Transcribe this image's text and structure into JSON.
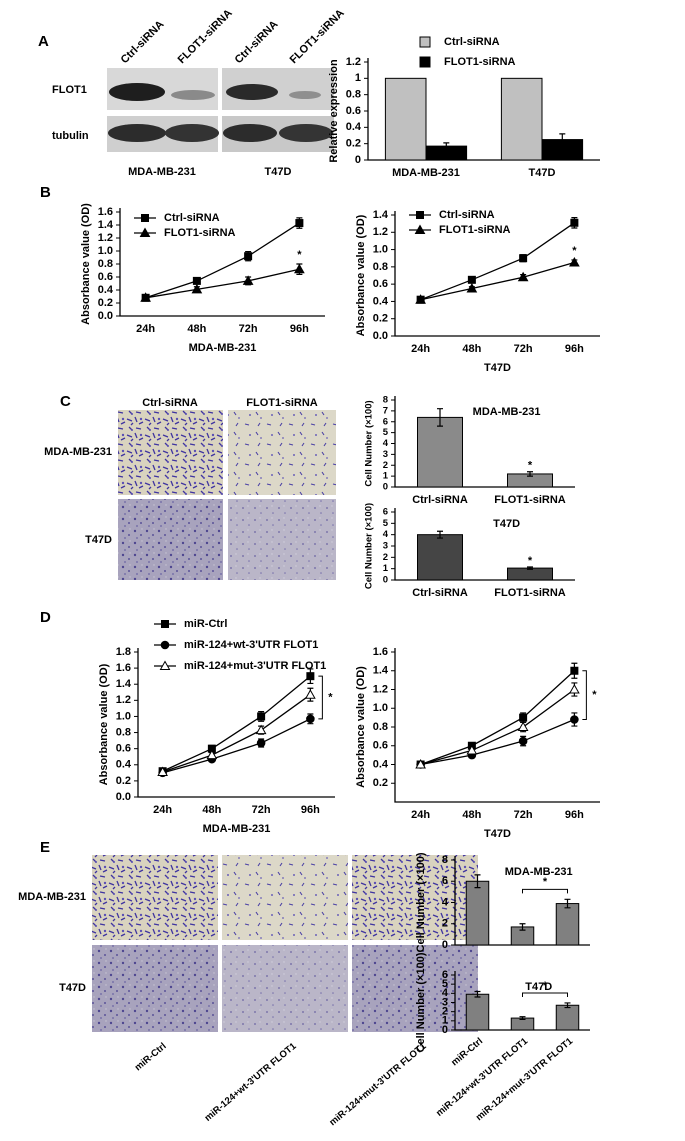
{
  "figure": {
    "panel_labels": [
      "A",
      "B",
      "C",
      "D",
      "E"
    ],
    "panel_a": {
      "lanes": [
        "Ctrl-siRNA",
        "FLOT1-siRNA",
        "Ctrl-siRNA",
        "FLOT1-siRNA"
      ],
      "rows": [
        "FLOT1",
        "tubulin"
      ],
      "cell_lines": [
        "MDA-MB-231",
        "T47D"
      ]
    },
    "panel_c": {
      "columns": [
        "Ctrl-siRNA",
        "FLOT1-siRNA"
      ],
      "rows": [
        "MDA-MB-231",
        "T47D"
      ]
    },
    "panel_e": {
      "columns": [
        "miR-Ctrl",
        "miR-124+wt-3'UTR FLOT1",
        "miR-124+mut-3'UTR FLOT1"
      ],
      "rows": [
        "MDA-MB-231",
        "T47D"
      ]
    }
  },
  "chart_data": [
    {
      "type": "bar",
      "ylabel": "Relative expression",
      "categories": [
        "MDA-MB-231",
        "T47D"
      ],
      "series": [
        {
          "name": "Ctrl-siRNA",
          "color": "#c0c0c0",
          "values": [
            1,
            1
          ]
        },
        {
          "name": "FLOT1-siRNA",
          "color": "#000000",
          "values": [
            0.17,
            0.25
          ],
          "errors": [
            0.04,
            0.07
          ]
        }
      ],
      "ylim": [
        0,
        1.2
      ],
      "yticks": [
        0,
        0.2,
        0.4,
        0.6,
        0.8,
        1,
        1.2
      ]
    },
    {
      "type": "line",
      "ylabel": "Absorbance value (OD)",
      "xlabel": "MDA-MB-231",
      "categories": [
        "24h",
        "48h",
        "72h",
        "96h"
      ],
      "series": [
        {
          "name": "Ctrl-siRNA",
          "color": "#000000",
          "marker": "square",
          "values": [
            0.28,
            0.54,
            0.92,
            1.43
          ],
          "errors": [
            0.03,
            0.04,
            0.07,
            0.08
          ]
        },
        {
          "name": "FLOT1-siRNA",
          "color": "#000000",
          "marker": "triangle",
          "values": [
            0.28,
            0.41,
            0.54,
            0.72
          ],
          "errors": [
            0.03,
            0.04,
            0.06,
            0.08
          ]
        }
      ],
      "ylim": [
        0,
        1.6
      ],
      "yticks": [
        {
          "value": 0,
          "label": "0.0"
        },
        0.2,
        0.4,
        0.6,
        0.8,
        {
          "value": 1,
          "label": "1.0"
        },
        1.2,
        1.4,
        1.6
      ],
      "annotations": [
        "*"
      ]
    },
    {
      "type": "line",
      "ylabel": "Absorbance value (OD)",
      "xlabel": "T47D",
      "categories": [
        "24h",
        "48h",
        "72h",
        "96h"
      ],
      "series": [
        {
          "name": "Ctrl-siRNA",
          "color": "#000000",
          "marker": "square",
          "values": [
            0.42,
            0.65,
            0.9,
            1.31
          ],
          "errors": [
            0.03,
            0.03,
            0.04,
            0.06
          ]
        },
        {
          "name": "FLOT1-siRNA",
          "color": "#000000",
          "marker": "triangle",
          "values": [
            0.42,
            0.55,
            0.68,
            0.85
          ],
          "errors": [
            0.03,
            0.02,
            0.03,
            0.03
          ]
        }
      ],
      "ylim": [
        0,
        1.4
      ],
      "yticks": [
        {
          "value": 0,
          "label": "0.0"
        },
        0.2,
        0.4,
        0.6,
        0.8,
        {
          "value": 1,
          "label": "1.0"
        },
        1.2,
        1.4
      ],
      "annotations": [
        "*"
      ]
    },
    {
      "type": "bar",
      "title": "MDA-MB-231",
      "ylabel": "Cell Number (×100)",
      "categories": [
        "Ctrl-siRNA",
        "FLOT1-siRNA"
      ],
      "series": [
        {
          "color": "#8a8a8a",
          "values": [
            6.4,
            1.2
          ],
          "errors": [
            0.8,
            0.2
          ]
        }
      ],
      "ylim": [
        0,
        8
      ],
      "yticks": [
        0,
        1,
        2,
        3,
        4,
        5,
        6,
        7,
        8
      ],
      "annotations": [
        "*"
      ]
    },
    {
      "type": "bar",
      "title": "T47D",
      "ylabel": "Cell Number (×100)",
      "categories": [
        "Ctrl-siRNA",
        "FLOT1-siRNA"
      ],
      "series": [
        {
          "color": "#454545",
          "values": [
            4,
            1.05
          ],
          "errors": [
            0.3,
            0.1
          ]
        }
      ],
      "ylim": [
        0,
        6
      ],
      "yticks": [
        0,
        1,
        2,
        3,
        4,
        5,
        6
      ],
      "annotations": [
        "*"
      ]
    },
    {
      "type": "line",
      "ylabel": "Absorbance value (OD)",
      "xlabel": "MDA-MB-231",
      "categories": [
        "24h",
        "48h",
        "72h",
        "96h"
      ],
      "series": [
        {
          "name": "miR-Ctrl",
          "color": "#000000",
          "marker": "square",
          "values": [
            0.32,
            0.6,
            1.0,
            1.5
          ],
          "errors": [
            0.03,
            0.04,
            0.06,
            0.09
          ]
        },
        {
          "name": "miR-124+wt-3'UTR FLOT1",
          "color": "#000000",
          "marker": "circle",
          "values": [
            0.3,
            0.47,
            0.67,
            0.97
          ],
          "errors": [
            0.03,
            0.03,
            0.05,
            0.06
          ]
        },
        {
          "name": "miR-124+mut-3'UTR FLOT1",
          "color": "#000000",
          "marker": "triangle-open",
          "values": [
            0.31,
            0.52,
            0.83,
            1.27
          ],
          "errors": [
            0.03,
            0.03,
            0.05,
            0.08
          ]
        }
      ],
      "ylim": [
        0,
        1.8
      ],
      "yticks": [
        {
          "value": 0,
          "label": "0.0"
        },
        0.2,
        0.4,
        0.6,
        0.8,
        {
          "value": 1,
          "label": "1.0"
        },
        1.2,
        1.4,
        1.6,
        1.8
      ],
      "annotations": [
        "*"
      ]
    },
    {
      "type": "line",
      "ylabel": "Absorbance value (OD)",
      "xlabel": "T47D",
      "categories": [
        "24h",
        "48h",
        "72h",
        "96h"
      ],
      "series": [
        {
          "color": "#000000",
          "marker": "square",
          "values": [
            0.4,
            0.6,
            0.9,
            1.4
          ],
          "errors": [
            0.03,
            0.03,
            0.05,
            0.08
          ]
        },
        {
          "color": "#000000",
          "marker": "circle",
          "values": [
            0.4,
            0.5,
            0.65,
            0.88
          ],
          "errors": [
            0.03,
            0.03,
            0.05,
            0.07
          ]
        },
        {
          "color": "#000000",
          "marker": "triangle-open",
          "values": [
            0.4,
            0.55,
            0.8,
            1.2
          ],
          "errors": [
            0.03,
            0.03,
            0.05,
            0.07
          ]
        }
      ],
      "ylim": [
        0,
        1.6
      ],
      "yticks": [
        0.2,
        0.4,
        0.6,
        0.8,
        {
          "value": 1,
          "label": "1.0"
        },
        1.2,
        1.4,
        1.6
      ],
      "annotations": [
        "*"
      ]
    },
    {
      "type": "bar",
      "title": "MDA-MB-231",
      "ylabel": "Cell Number (×100)",
      "categories": [
        null,
        null,
        null
      ],
      "series": [
        {
          "color": "#808080",
          "values": [
            6,
            1.7,
            3.9
          ],
          "errors": [
            0.6,
            0.3,
            0.4
          ]
        }
      ],
      "ylim": [
        0,
        8
      ],
      "yticks": [
        0,
        2,
        4,
        6,
        8
      ],
      "annotations": [
        "*"
      ]
    },
    {
      "type": "bar",
      "title": "T47D",
      "ylabel": "Cell Number (×100)",
      "categories": [
        "miR-Ctrl",
        "miR-124+wt-3'UTR FLOT1",
        "miR-124+mut-3'UTR FLOT1"
      ],
      "series": [
        {
          "color": "#808080",
          "values": [
            3.9,
            1.3,
            2.7
          ],
          "errors": [
            0.3,
            0.15,
            0.25
          ]
        }
      ],
      "ylim": [
        0,
        6
      ],
      "yticks": [
        0,
        1,
        2,
        3,
        4,
        5,
        6
      ],
      "annotations": [
        "*"
      ]
    }
  ]
}
